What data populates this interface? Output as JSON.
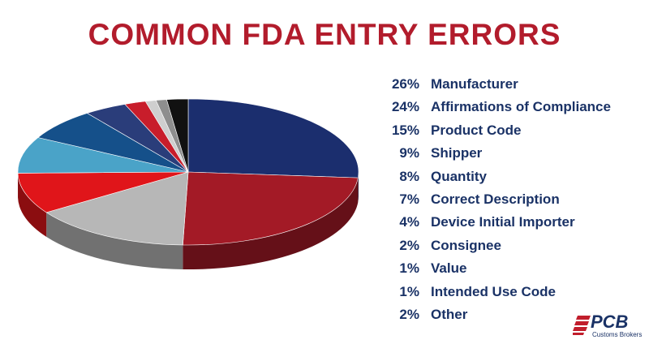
{
  "chart_data": {
    "type": "pie",
    "title": "COMMON FDA ENTRY ERRORS",
    "slices": [
      {
        "label": "Manufacturer",
        "value": 26,
        "display": "26%",
        "color": "#1b2e6e"
      },
      {
        "label": "Affirmations of Compliance",
        "value": 24,
        "display": "24%",
        "color": "#a31a26"
      },
      {
        "label": "Product Code",
        "value": 15,
        "display": "15%",
        "color": "#b7b7b7"
      },
      {
        "label": "Shipper",
        "value": 9,
        "display": "9%",
        "color": "#e0151a"
      },
      {
        "label": "Quantity",
        "value": 8,
        "display": "8%",
        "color": "#4aa3c8"
      },
      {
        "label": "Correct Description",
        "value": 7,
        "display": "7%",
        "color": "#15508a"
      },
      {
        "label": "Device Initial Importer",
        "value": 4,
        "display": "4%",
        "color": "#2a3d7a"
      },
      {
        "label": "Consignee",
        "value": 2,
        "display": "2%",
        "color": "#c81d2b"
      },
      {
        "label": "Value",
        "value": 1,
        "display": "1%",
        "color": "#cfcfcf"
      },
      {
        "label": "Intended Use Code",
        "value": 1,
        "display": "1%",
        "color": "#8e8e8e"
      },
      {
        "label": "Other",
        "value": 2,
        "display": "2%",
        "color": "#111111"
      }
    ]
  },
  "logo": {
    "name": "PCB",
    "tagline": "Customs Brokers",
    "colors": {
      "text": "#1a3266",
      "stripes": "#c11e2c"
    }
  }
}
